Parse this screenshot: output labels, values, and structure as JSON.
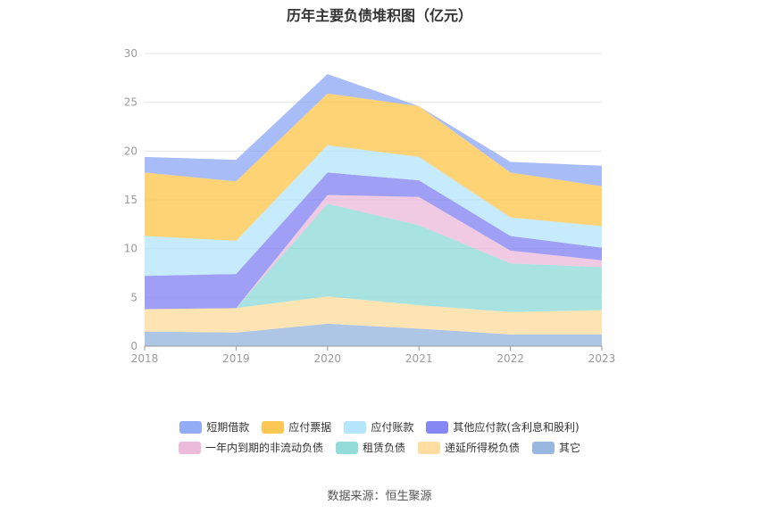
{
  "chart_data": {
    "type": "area",
    "title": "历年主要负债堆积图（亿元）",
    "stacked": true,
    "x": [
      "2018",
      "2019",
      "2020",
      "2021",
      "2022",
      "2023"
    ],
    "yticks": [
      "0",
      "5",
      "10",
      "15",
      "20",
      "25",
      "30"
    ],
    "ylim": [
      0,
      30
    ],
    "grid": true,
    "legend_position": "bottom",
    "series": [
      {
        "name": "其它",
        "color": "#8eb0dd",
        "values": [
          1.5,
          1.4,
          2.3,
          1.8,
          1.2,
          1.2
        ]
      },
      {
        "name": "递延所得税负债",
        "color": "#ffd996",
        "values": [
          2.3,
          2.5,
          2.8,
          2.4,
          2.3,
          2.5
        ]
      },
      {
        "name": "租赁负债",
        "color": "#87d8d6",
        "values": [
          0.0,
          0.0,
          9.5,
          8.2,
          5.0,
          4.4
        ]
      },
      {
        "name": "一年内到期的非流动负债",
        "color": "#eab4d8",
        "values": [
          0.0,
          0.0,
          0.9,
          2.9,
          1.3,
          0.7
        ]
      },
      {
        "name": "其他应付款(含利息和股利)",
        "color": "#7a7af2",
        "values": [
          3.4,
          3.5,
          2.3,
          1.7,
          1.5,
          1.3
        ]
      },
      {
        "name": "应付账款",
        "color": "#aee3fb",
        "values": [
          4.1,
          3.4,
          2.8,
          2.4,
          1.9,
          2.2
        ]
      },
      {
        "name": "应付票据",
        "color": "#fcc240",
        "values": [
          6.5,
          6.1,
          5.3,
          5.2,
          4.6,
          4.1
        ]
      },
      {
        "name": "短期借款",
        "color": "#86a4f5",
        "values": [
          1.6,
          2.2,
          2.0,
          0.0,
          1.1,
          2.1
        ]
      }
    ],
    "legend_order": [
      "短期借款",
      "应付票据",
      "应付账款",
      "其他应付款(含利息和股利)",
      "一年内到期的非流动负债",
      "租赁负债",
      "递延所得税负债",
      "其它"
    ],
    "source": "数据来源：恒生聚源"
  }
}
